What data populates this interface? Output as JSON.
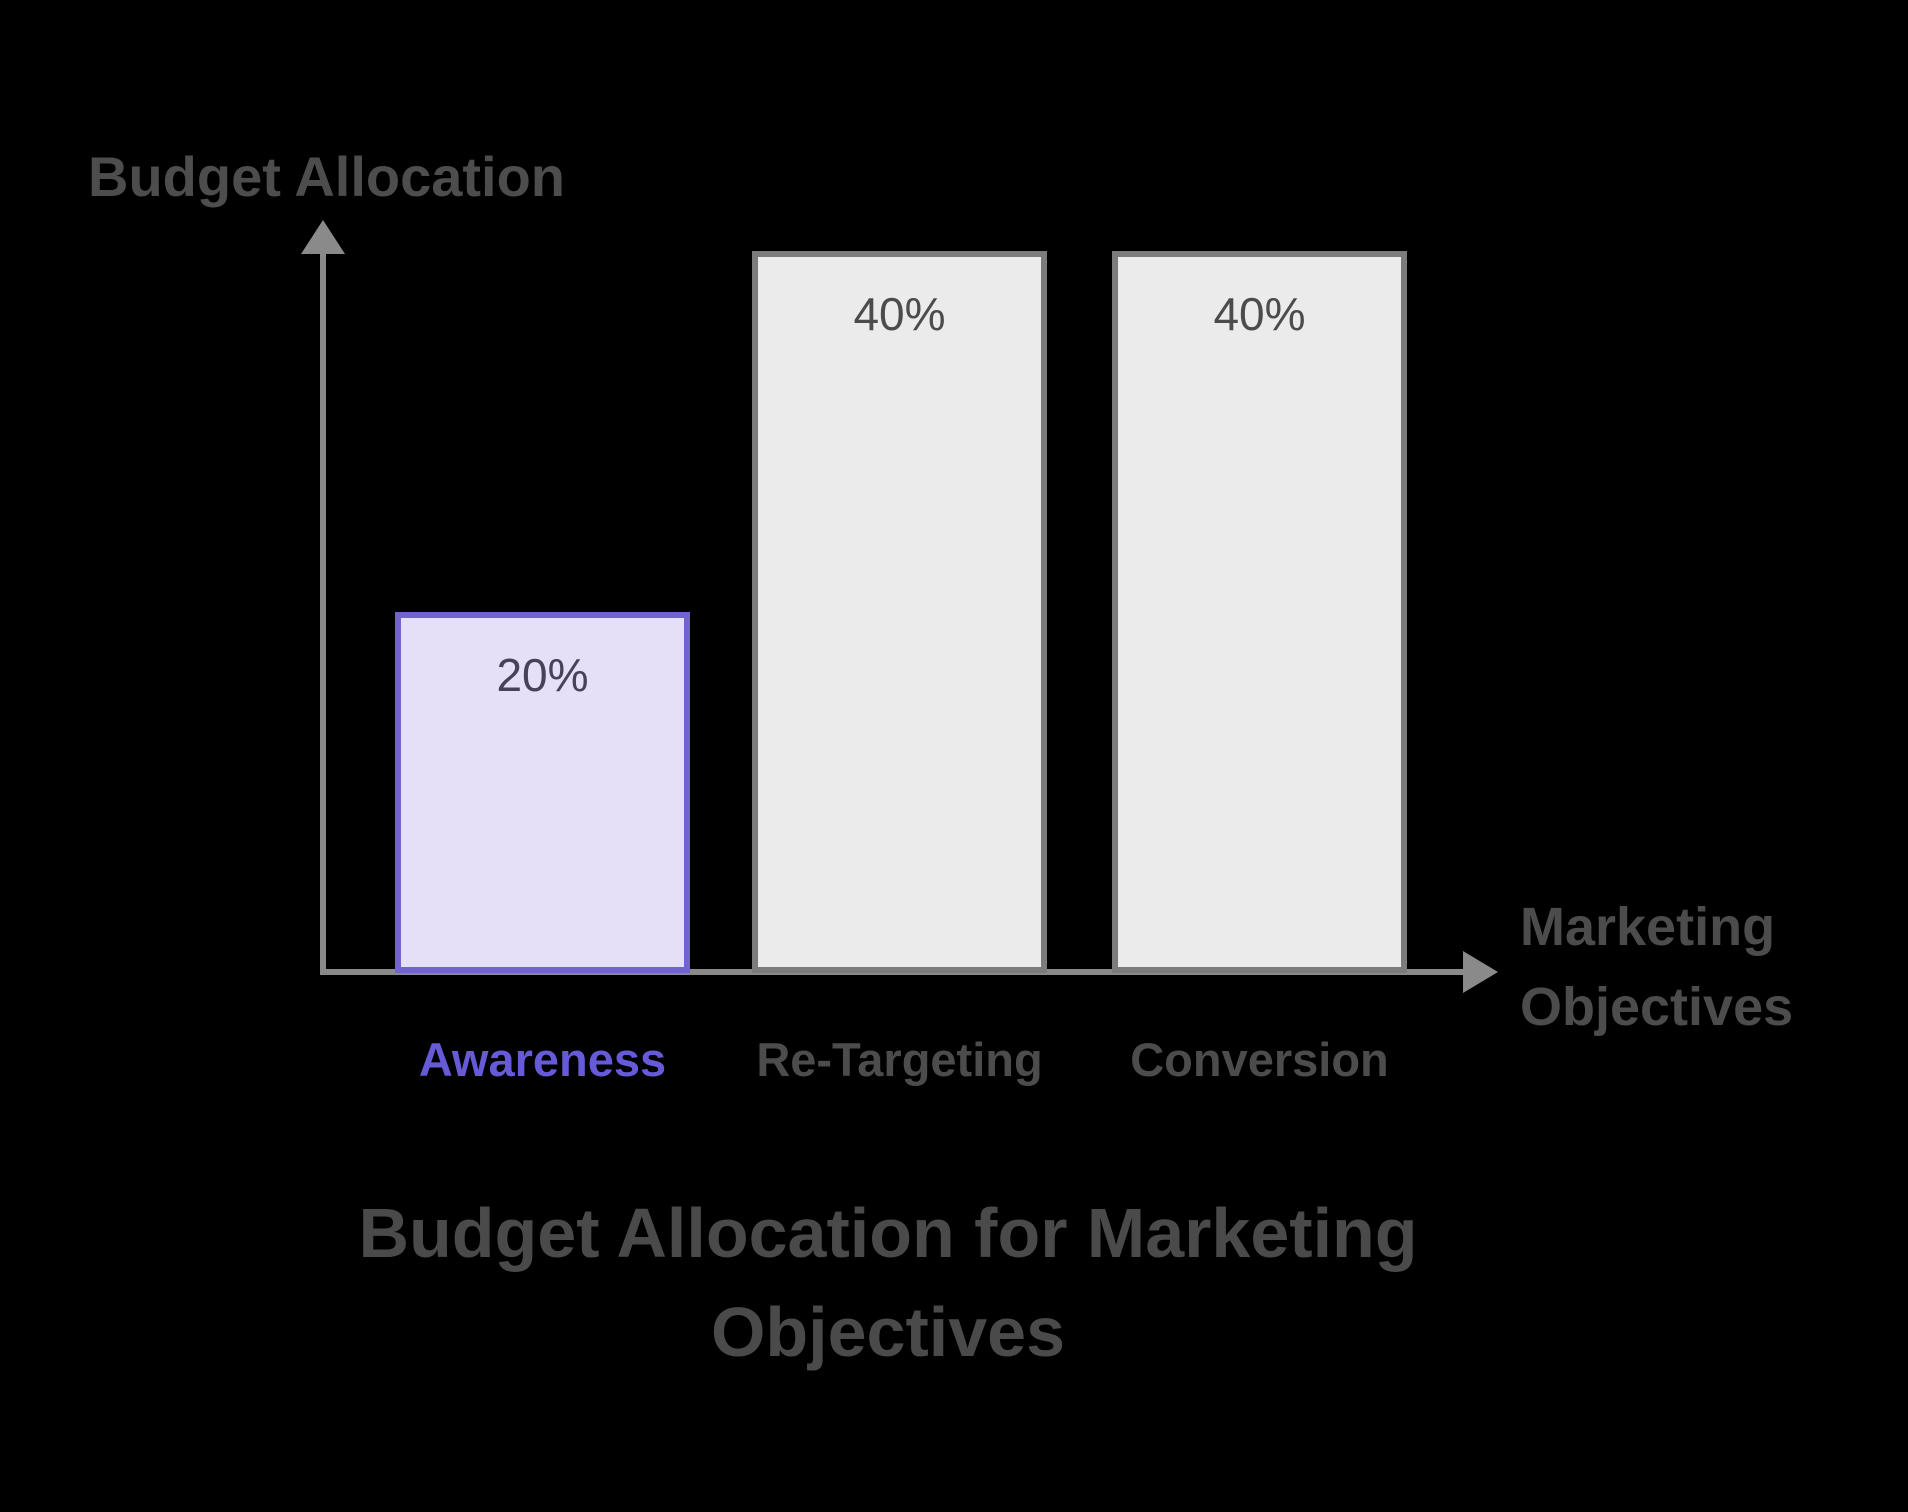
{
  "background": "#000000",
  "chart_data": {
    "type": "bar",
    "title": "Budget Allocation for Marketing Objectives",
    "xlabel": "Marketing Objectives",
    "ylabel": "Budget Allocation",
    "categories": [
      "Awareness",
      "Re-Targeting",
      "Conversion"
    ],
    "values": [
      20,
      40,
      40
    ],
    "value_labels": [
      "20%",
      "40%",
      "40%"
    ],
    "unit": "%",
    "ylim": [
      0,
      42
    ],
    "grid": false,
    "legend": false,
    "axis_arrows": true,
    "highlighted_category": "Awareness",
    "axis_color": "#8a8a8a",
    "title_color": "#4a4a4a",
    "axis_label_color": "#4c4c4c",
    "y_label_color": "#4d4d4d",
    "bar_styles": [
      {
        "fill": "#e5e0f8",
        "border": "#7164ce",
        "value_color": "#474259",
        "category_color": "#675ad8"
      },
      {
        "fill": "#ebebeb",
        "border": "#7c7c7c",
        "value_color": "#4c4c4c",
        "category_color": "#4c4c4c"
      },
      {
        "fill": "#ebebeb",
        "border": "#7c7c7c",
        "value_color": "#4c4c4c",
        "category_color": "#4c4c4c"
      }
    ]
  }
}
